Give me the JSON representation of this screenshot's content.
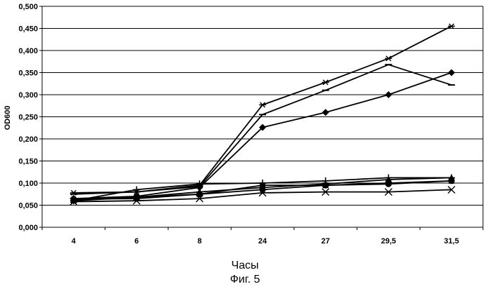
{
  "chart_data": {
    "type": "line",
    "ylabel": "OD600",
    "xlabel": "Часы",
    "caption": "Фиг. 5",
    "categories": [
      "4",
      "6",
      "8",
      "24",
      "27",
      "29,5",
      "31,5"
    ],
    "ylim": [
      0,
      0.5
    ],
    "yticks": [
      "0,000",
      "0,050",
      "0,100",
      "0,150",
      "0,200",
      "0,250",
      "0,300",
      "0,350",
      "0,400",
      "0,450",
      "0,500"
    ],
    "grid": true,
    "series": [
      {
        "marker": "star",
        "values": [
          0.078,
          0.08,
          0.095,
          0.277,
          0.328,
          0.382,
          0.455
        ]
      },
      {
        "marker": "dash",
        "values": [
          0.075,
          0.08,
          0.092,
          0.255,
          0.31,
          0.368,
          0.322
        ]
      },
      {
        "marker": "diamond",
        "values": [
          0.065,
          0.07,
          0.09,
          0.226,
          0.26,
          0.3,
          0.35
        ]
      },
      {
        "marker": "plus",
        "values": [
          0.06,
          0.085,
          0.098,
          0.1,
          0.105,
          0.112,
          0.112
        ]
      },
      {
        "marker": "triangle",
        "values": [
          0.062,
          0.068,
          0.08,
          0.09,
          0.098,
          0.108,
          0.112
        ]
      },
      {
        "marker": "square",
        "values": [
          0.06,
          0.068,
          0.075,
          0.095,
          0.095,
          0.1,
          0.105
        ]
      },
      {
        "marker": "circle",
        "values": [
          0.064,
          0.065,
          0.075,
          0.085,
          0.095,
          0.098,
          0.105
        ]
      },
      {
        "marker": "x",
        "values": [
          0.058,
          0.06,
          0.065,
          0.078,
          0.08,
          0.08,
          0.085
        ]
      }
    ]
  }
}
